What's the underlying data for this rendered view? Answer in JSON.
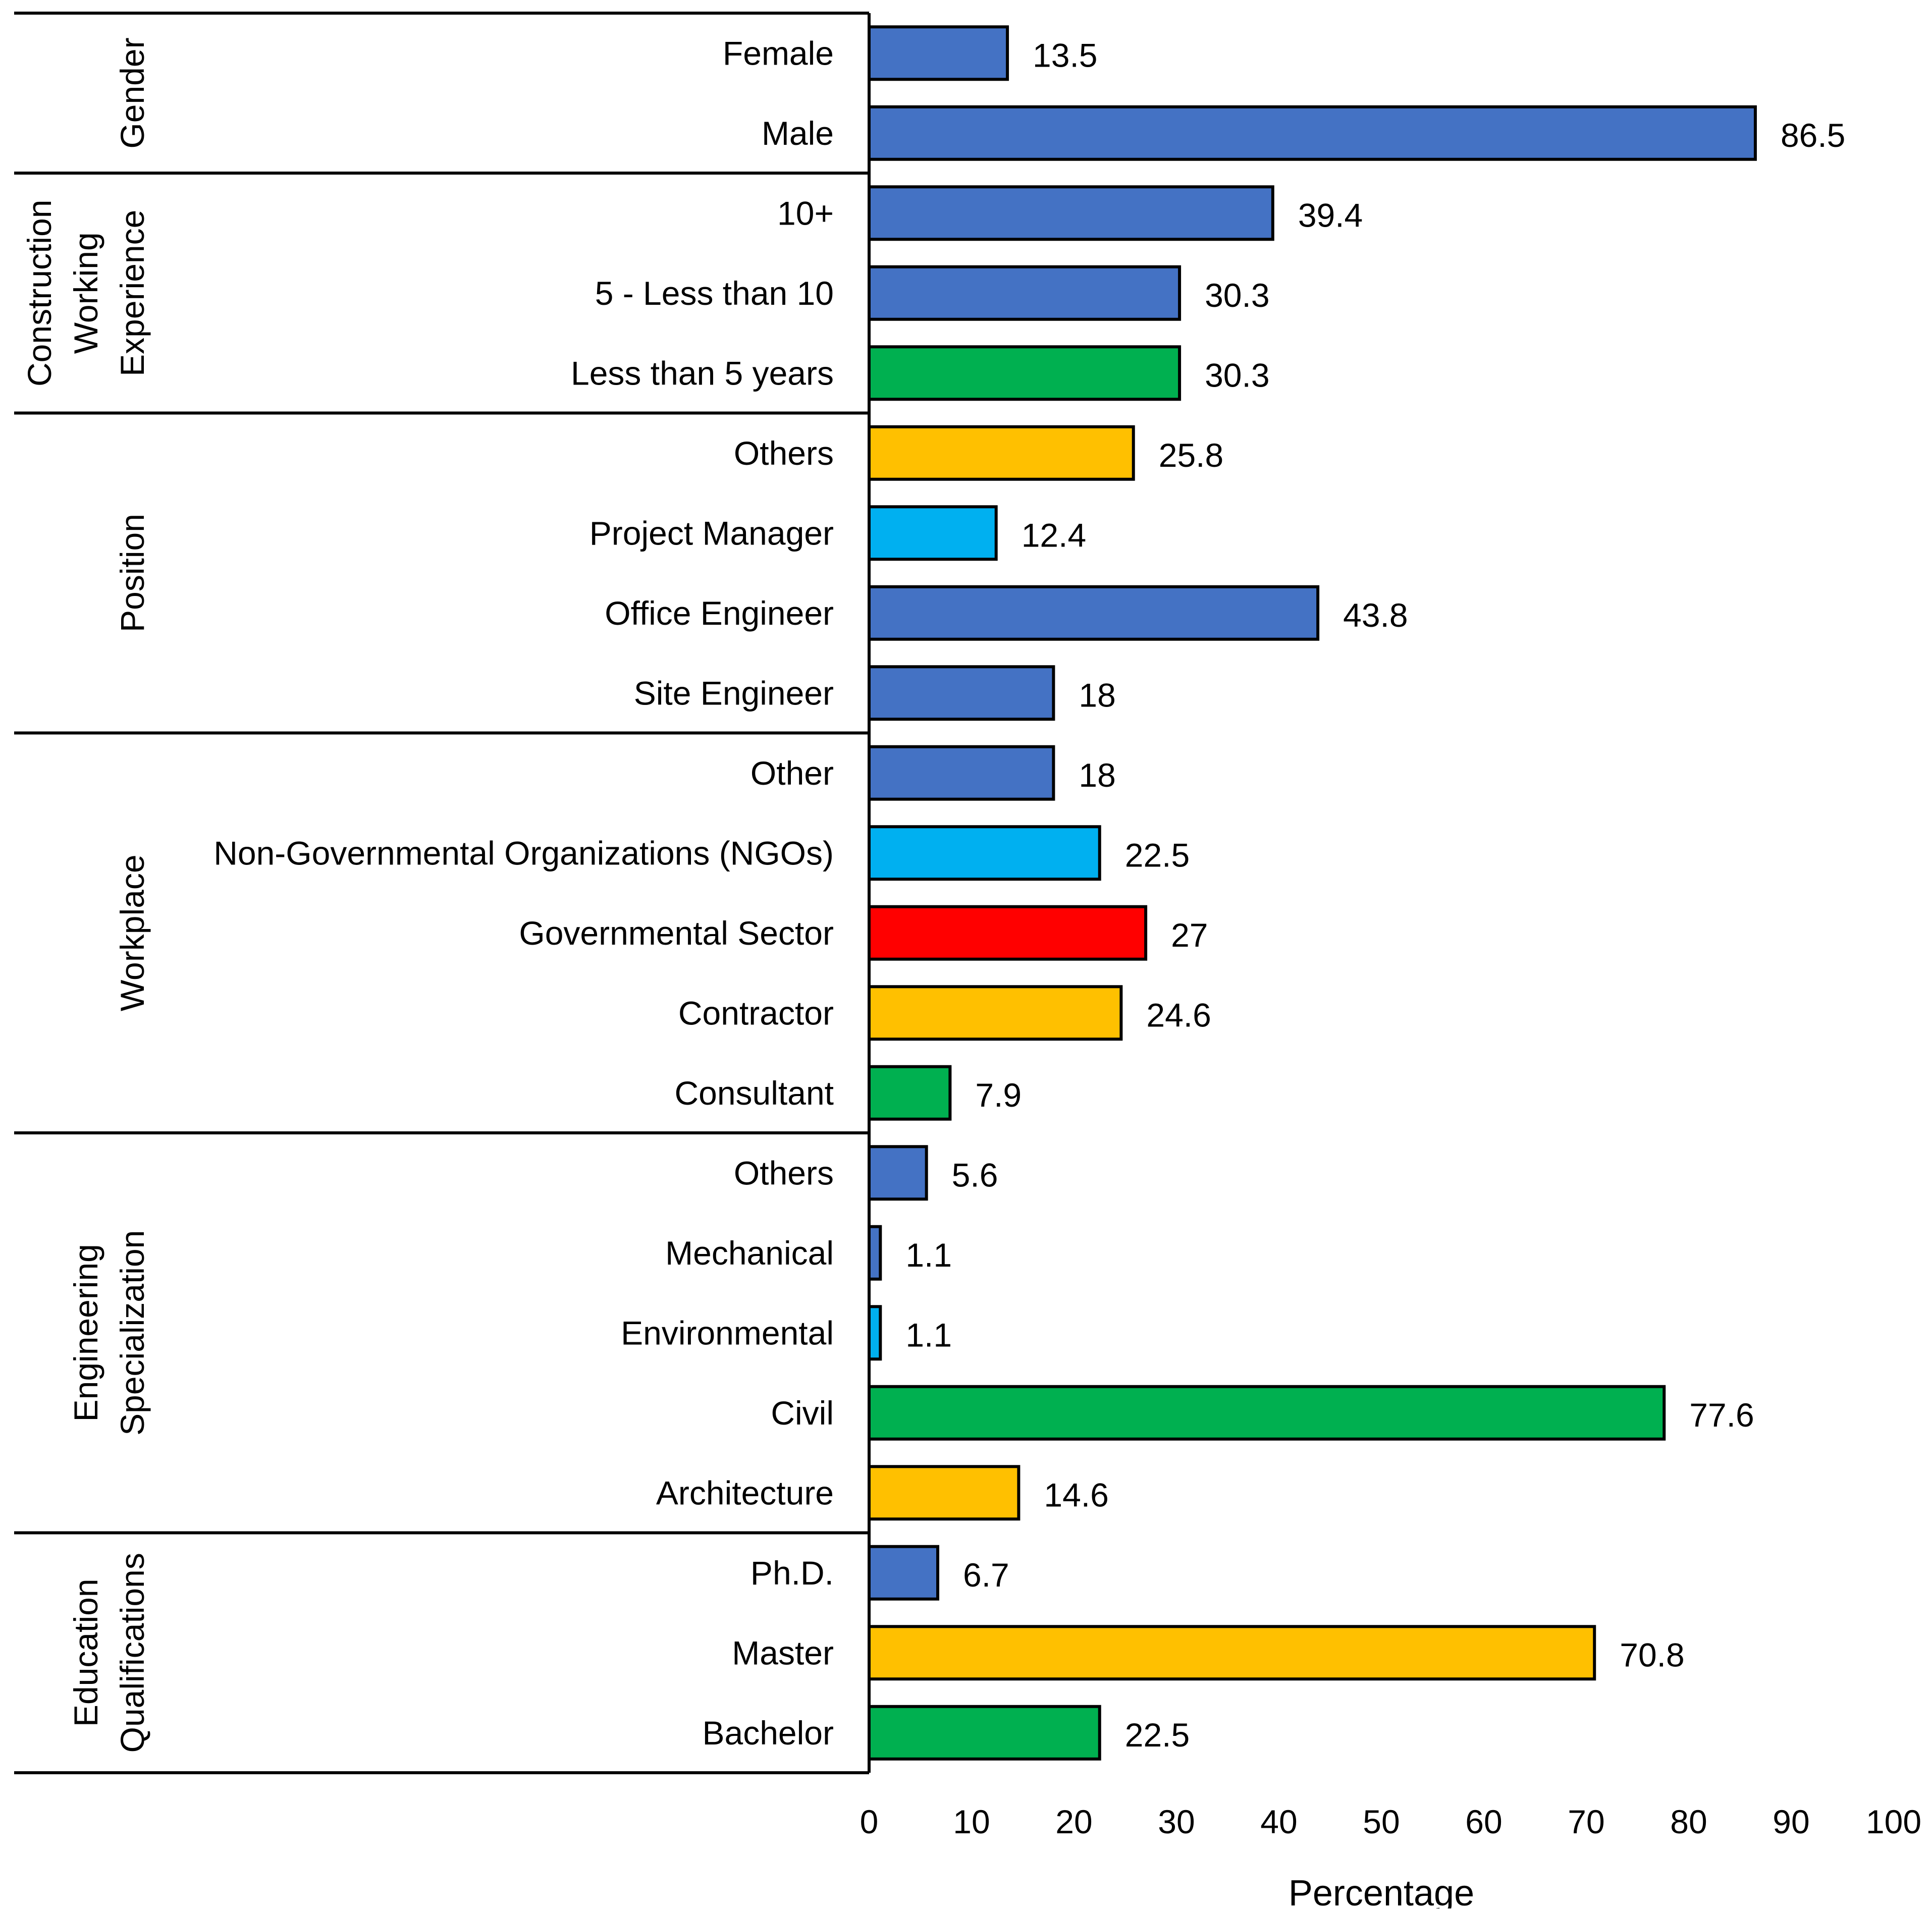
{
  "colors": {
    "blue": "#4472C4",
    "lightblue": "#00B0F0",
    "green": "#00B050",
    "yellow": "#FFC000",
    "red": "#FF0000"
  },
  "chart_data": {
    "type": "bar",
    "orientation": "horizontal",
    "xlabel": "Percentage",
    "xlim": [
      0,
      100
    ],
    "xticks": [
      0,
      10,
      20,
      30,
      40,
      50,
      60,
      70,
      80,
      90,
      100
    ],
    "grid": false,
    "groups": [
      {
        "name": "Gender",
        "label_lines": [
          "Gender"
        ],
        "categories": [
          {
            "label": "Female",
            "value": 13.5,
            "color": "blue"
          },
          {
            "label": "Male",
            "value": 86.5,
            "color": "blue"
          }
        ]
      },
      {
        "name": "Construction Working Experience",
        "label_lines": [
          "Construction",
          "Working",
          "Experience"
        ],
        "categories": [
          {
            "label": "10+",
            "value": 39.4,
            "color": "blue"
          },
          {
            "label": "5 - Less than 10",
            "value": 30.3,
            "color": "blue"
          },
          {
            "label": "Less than 5 years",
            "value": 30.3,
            "color": "green"
          }
        ]
      },
      {
        "name": "Position",
        "label_lines": [
          "Position"
        ],
        "categories": [
          {
            "label": "Others",
            "value": 25.8,
            "color": "yellow"
          },
          {
            "label": "Project Manager",
            "value": 12.4,
            "color": "lightblue"
          },
          {
            "label": "Office Engineer",
            "value": 43.8,
            "color": "blue"
          },
          {
            "label": "Site Engineer",
            "value": 18,
            "color": "blue"
          }
        ]
      },
      {
        "name": "Workplace",
        "label_lines": [
          "Workplace"
        ],
        "categories": [
          {
            "label": "Other",
            "value": 18,
            "color": "blue"
          },
          {
            "label": "Non-Governmental Organizations (NGOs)",
            "value": 22.5,
            "color": "lightblue"
          },
          {
            "label": "Governmental Sector",
            "value": 27,
            "color": "red"
          },
          {
            "label": "Contractor",
            "value": 24.6,
            "color": "yellow"
          },
          {
            "label": "Consultant",
            "value": 7.9,
            "color": "green"
          }
        ]
      },
      {
        "name": "Engineering Specialization",
        "label_lines": [
          "Engineering",
          "Specialization"
        ],
        "categories": [
          {
            "label": "Others",
            "value": 5.6,
            "color": "blue"
          },
          {
            "label": "Mechanical",
            "value": 1.1,
            "color": "blue"
          },
          {
            "label": "Environmental",
            "value": 1.1,
            "color": "lightblue"
          },
          {
            "label": "Civil",
            "value": 77.6,
            "color": "green"
          },
          {
            "label": "Architecture",
            "value": 14.6,
            "color": "yellow"
          }
        ]
      },
      {
        "name": "Education Qualifications",
        "label_lines": [
          "Education",
          "Qualifications"
        ],
        "categories": [
          {
            "label": "Ph.D.",
            "value": 6.7,
            "color": "blue"
          },
          {
            "label": "Master",
            "value": 70.8,
            "color": "yellow"
          },
          {
            "label": "Bachelor",
            "value": 22.5,
            "color": "green"
          }
        ]
      }
    ]
  }
}
